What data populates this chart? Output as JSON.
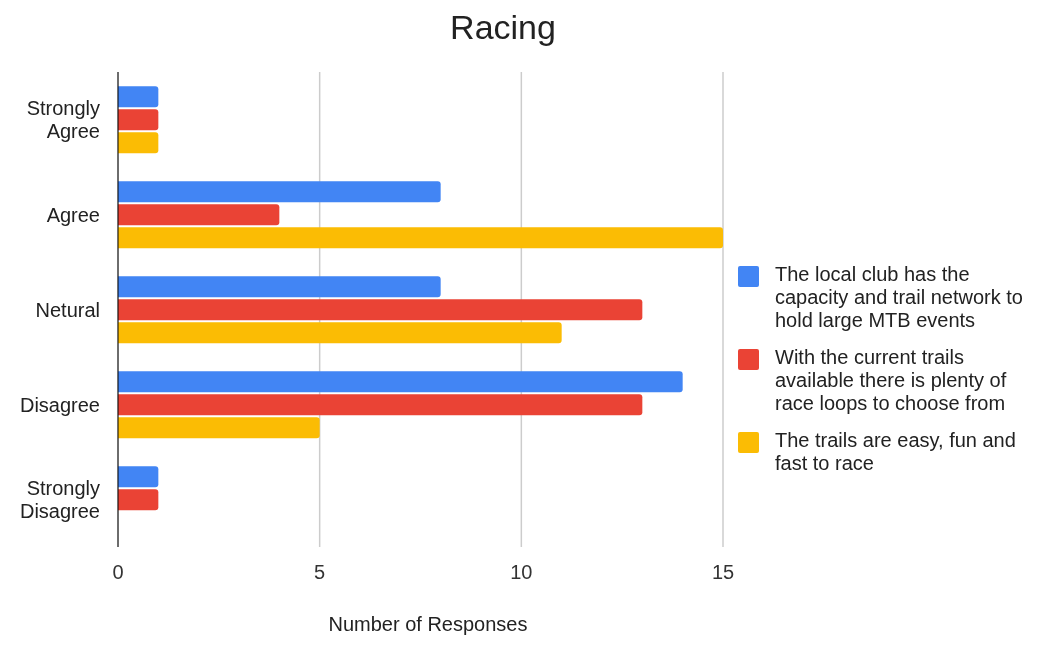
{
  "chart_data": {
    "type": "bar",
    "orientation": "horizontal",
    "title": "Racing",
    "xlabel": "Number of Responses",
    "categories": [
      "Strongly Agree",
      "Agree",
      "Netural",
      "Disagree",
      "Strongly Disagree"
    ],
    "series": [
      {
        "name": "The local club has the capacity and trail network to hold large MTB events",
        "color": "#4285f4",
        "values": [
          1,
          8,
          8,
          14,
          1
        ]
      },
      {
        "name": "With the current trails available there is plenty of race loops to choose from",
        "color": "#ea4335",
        "values": [
          1,
          4,
          13,
          13,
          1
        ]
      },
      {
        "name": "The trails are easy, fun and fast to race",
        "color": "#fbbc04",
        "values": [
          1,
          15,
          11,
          5,
          0
        ]
      }
    ],
    "xlim": [
      0,
      15
    ],
    "xticks": [
      0,
      5,
      10,
      15
    ],
    "grid": "x",
    "legend": "right"
  }
}
